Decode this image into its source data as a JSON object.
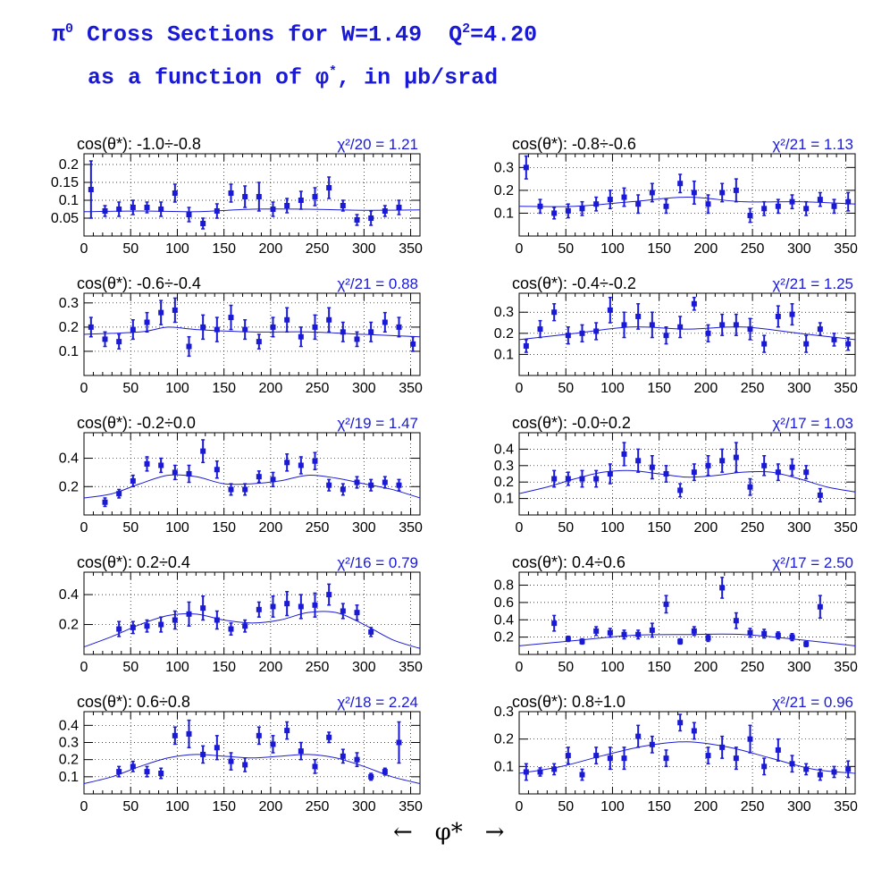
{
  "title": {
    "line1_prefix": "π",
    "line1_prefix_sup": "0",
    "line1_mid": " Cross Sections for W=1.49  Q",
    "line1_q_sup": "2",
    "line1_end": "=4.20",
    "line2_prefix": "as a function of φ",
    "line2_sup": "*",
    "line2_end": ", in μb/srad"
  },
  "footer": {
    "left_arrow": "←",
    "label": "φ*",
    "right_arrow": "→"
  },
  "colors": {
    "data": "#1a1ad6",
    "fit": "#1a1ad6",
    "grid": "#000000"
  },
  "chart_data": [
    {
      "type": "scatter",
      "label": "cos(θ*): -1.0÷-0.8",
      "chi2": "χ²/20 = 1.21",
      "xlim": [
        0,
        360
      ],
      "ylim": [
        0,
        0.23
      ],
      "yticks": [
        0.05,
        0.1,
        0.15,
        0.2
      ],
      "ytick_labels": [
        "0.05",
        "0.1",
        "0.15",
        "0.2"
      ],
      "x": [
        7.5,
        22.5,
        37.5,
        52.5,
        67.5,
        82.5,
        97.5,
        112.5,
        127.5,
        142.5,
        157.5,
        172.5,
        187.5,
        202.5,
        217.5,
        232.5,
        247.5,
        262.5,
        277.5,
        292.5,
        307.5,
        322.5,
        337.5
      ],
      "y": [
        0.13,
        0.07,
        0.075,
        0.08,
        0.08,
        0.075,
        0.12,
        0.06,
        0.035,
        0.07,
        0.12,
        0.11,
        0.11,
        0.075,
        0.085,
        0.1,
        0.11,
        0.135,
        0.085,
        0.045,
        0.05,
        0.07,
        0.08
      ],
      "err": [
        0.08,
        0.015,
        0.02,
        0.02,
        0.015,
        0.02,
        0.025,
        0.02,
        0.015,
        0.02,
        0.025,
        0.03,
        0.04,
        0.02,
        0.02,
        0.025,
        0.025,
        0.03,
        0.015,
        0.015,
        0.02,
        0.015,
        0.02
      ],
      "fit": [
        [
          0,
          0.068
        ],
        [
          60,
          0.07
        ],
        [
          120,
          0.068
        ],
        [
          180,
          0.075
        ],
        [
          240,
          0.075
        ],
        [
          300,
          0.072
        ],
        [
          360,
          0.073
        ]
      ]
    },
    {
      "type": "scatter",
      "label": "cos(θ*): -0.8÷-0.6",
      "chi2": "χ²/21 = 1.13",
      "xlim": [
        0,
        360
      ],
      "ylim": [
        0,
        0.36
      ],
      "yticks": [
        0.1,
        0.2,
        0.3
      ],
      "ytick_labels": [
        "0.1",
        "0.2",
        "0.3"
      ],
      "x": [
        7.5,
        22.5,
        37.5,
        52.5,
        67.5,
        82.5,
        97.5,
        112.5,
        127.5,
        142.5,
        157.5,
        172.5,
        187.5,
        202.5,
        217.5,
        232.5,
        247.5,
        262.5,
        277.5,
        292.5,
        307.5,
        322.5,
        337.5,
        352.5
      ],
      "y": [
        0.3,
        0.13,
        0.1,
        0.11,
        0.12,
        0.14,
        0.16,
        0.17,
        0.14,
        0.19,
        0.13,
        0.23,
        0.19,
        0.14,
        0.19,
        0.2,
        0.09,
        0.12,
        0.13,
        0.15,
        0.12,
        0.16,
        0.13,
        0.15
      ],
      "err": [
        0.05,
        0.03,
        0.025,
        0.03,
        0.03,
        0.03,
        0.04,
        0.04,
        0.04,
        0.04,
        0.03,
        0.04,
        0.05,
        0.04,
        0.04,
        0.05,
        0.03,
        0.03,
        0.03,
        0.03,
        0.03,
        0.03,
        0.03,
        0.04
      ],
      "fit": [
        [
          0,
          0.13
        ],
        [
          60,
          0.13
        ],
        [
          120,
          0.15
        ],
        [
          180,
          0.17
        ],
        [
          240,
          0.15
        ],
        [
          300,
          0.15
        ],
        [
          360,
          0.14
        ]
      ]
    },
    {
      "type": "scatter",
      "label": "cos(θ*): -0.6÷-0.4",
      "chi2": "χ²/21 = 0.88",
      "xlim": [
        0,
        360
      ],
      "ylim": [
        0,
        0.34
      ],
      "yticks": [
        0.1,
        0.2,
        0.3
      ],
      "ytick_labels": [
        "0.1",
        "0.2",
        "0.3"
      ],
      "x": [
        7.5,
        22.5,
        37.5,
        52.5,
        67.5,
        82.5,
        97.5,
        112.5,
        127.5,
        142.5,
        157.5,
        172.5,
        187.5,
        202.5,
        217.5,
        232.5,
        247.5,
        262.5,
        277.5,
        292.5,
        307.5,
        322.5,
        337.5,
        352.5
      ],
      "y": [
        0.2,
        0.15,
        0.14,
        0.19,
        0.22,
        0.26,
        0.27,
        0.12,
        0.2,
        0.19,
        0.24,
        0.19,
        0.14,
        0.2,
        0.23,
        0.16,
        0.2,
        0.23,
        0.18,
        0.15,
        0.18,
        0.22,
        0.2,
        0.13
      ],
      "err": [
        0.04,
        0.03,
        0.03,
        0.04,
        0.04,
        0.05,
        0.05,
        0.04,
        0.05,
        0.05,
        0.05,
        0.04,
        0.03,
        0.04,
        0.05,
        0.04,
        0.05,
        0.05,
        0.04,
        0.03,
        0.04,
        0.04,
        0.04,
        0.03
      ],
      "fit": [
        [
          0,
          0.17
        ],
        [
          60,
          0.18
        ],
        [
          90,
          0.2
        ],
        [
          120,
          0.19
        ],
        [
          180,
          0.18
        ],
        [
          240,
          0.18
        ],
        [
          300,
          0.17
        ],
        [
          360,
          0.16
        ]
      ]
    },
    {
      "type": "scatter",
      "label": "cos(θ*): -0.4÷-0.2",
      "chi2": "χ²/21 = 1.25",
      "xlim": [
        0,
        360
      ],
      "ylim": [
        0,
        0.39
      ],
      "yticks": [
        0.1,
        0.2,
        0.3
      ],
      "ytick_labels": [
        "0.1",
        "0.2",
        "0.3"
      ],
      "x": [
        7.5,
        22.5,
        37.5,
        52.5,
        67.5,
        82.5,
        97.5,
        112.5,
        127.5,
        142.5,
        157.5,
        172.5,
        187.5,
        202.5,
        217.5,
        232.5,
        247.5,
        262.5,
        277.5,
        292.5,
        307.5,
        322.5,
        337.5,
        352.5
      ],
      "y": [
        0.14,
        0.22,
        0.3,
        0.19,
        0.2,
        0.21,
        0.31,
        0.24,
        0.28,
        0.24,
        0.19,
        0.23,
        0.34,
        0.2,
        0.24,
        0.24,
        0.22,
        0.15,
        0.28,
        0.29,
        0.15,
        0.22,
        0.17,
        0.15
      ],
      "err": [
        0.03,
        0.04,
        0.04,
        0.04,
        0.04,
        0.04,
        0.06,
        0.06,
        0.06,
        0.06,
        0.04,
        0.05,
        0.03,
        0.04,
        0.05,
        0.05,
        0.05,
        0.04,
        0.05,
        0.05,
        0.04,
        0.03,
        0.03,
        0.03
      ],
      "fit": [
        [
          0,
          0.17
        ],
        [
          60,
          0.2
        ],
        [
          120,
          0.23
        ],
        [
          180,
          0.22
        ],
        [
          240,
          0.23
        ],
        [
          300,
          0.2
        ],
        [
          360,
          0.17
        ]
      ]
    },
    {
      "type": "scatter",
      "label": "cos(θ*): -0.2÷0.0",
      "chi2": "χ²/19 = 1.47",
      "xlim": [
        0,
        360
      ],
      "ylim": [
        0,
        0.58
      ],
      "yticks": [
        0.2,
        0.4
      ],
      "ytick_labels": [
        "0.2",
        "0.4"
      ],
      "x": [
        22.5,
        37.5,
        52.5,
        67.5,
        82.5,
        97.5,
        112.5,
        127.5,
        142.5,
        157.5,
        172.5,
        187.5,
        202.5,
        217.5,
        232.5,
        247.5,
        262.5,
        277.5,
        292.5,
        307.5,
        322.5,
        337.5
      ],
      "y": [
        0.09,
        0.15,
        0.24,
        0.36,
        0.35,
        0.3,
        0.29,
        0.45,
        0.32,
        0.18,
        0.18,
        0.27,
        0.25,
        0.37,
        0.35,
        0.38,
        0.21,
        0.18,
        0.23,
        0.21,
        0.23,
        0.21
      ],
      "err": [
        0.03,
        0.03,
        0.04,
        0.05,
        0.05,
        0.05,
        0.06,
        0.08,
        0.06,
        0.04,
        0.04,
        0.04,
        0.05,
        0.06,
        0.06,
        0.06,
        0.04,
        0.04,
        0.04,
        0.04,
        0.04,
        0.04
      ],
      "fit": [
        [
          0,
          0.12
        ],
        [
          30,
          0.15
        ],
        [
          60,
          0.22
        ],
        [
          90,
          0.28
        ],
        [
          120,
          0.27
        ],
        [
          150,
          0.22
        ],
        [
          180,
          0.22
        ],
        [
          210,
          0.24
        ],
        [
          240,
          0.28
        ],
        [
          270,
          0.26
        ],
        [
          300,
          0.22
        ],
        [
          330,
          0.18
        ],
        [
          360,
          0.12
        ]
      ]
    },
    {
      "type": "scatter",
      "label": "cos(θ*): -0.0÷0.2",
      "chi2": "χ²/17 = 1.03",
      "xlim": [
        0,
        360
      ],
      "ylim": [
        0,
        0.5
      ],
      "yticks": [
        0.1,
        0.2,
        0.3,
        0.4
      ],
      "ytick_labels": [
        "0.1",
        "0.2",
        "0.3",
        "0.4"
      ],
      "x": [
        37.5,
        52.5,
        67.5,
        82.5,
        97.5,
        112.5,
        127.5,
        142.5,
        157.5,
        172.5,
        187.5,
        202.5,
        217.5,
        232.5,
        247.5,
        262.5,
        277.5,
        292.5,
        307.5,
        322.5
      ],
      "y": [
        0.22,
        0.22,
        0.22,
        0.22,
        0.25,
        0.37,
        0.33,
        0.29,
        0.25,
        0.15,
        0.26,
        0.3,
        0.33,
        0.35,
        0.17,
        0.3,
        0.26,
        0.29,
        0.26,
        0.12
      ],
      "err": [
        0.05,
        0.04,
        0.05,
        0.05,
        0.06,
        0.07,
        0.07,
        0.07,
        0.05,
        0.04,
        0.05,
        0.06,
        0.07,
        0.09,
        0.05,
        0.06,
        0.05,
        0.05,
        0.04,
        0.04
      ],
      "fit": [
        [
          0,
          0.13
        ],
        [
          30,
          0.17
        ],
        [
          60,
          0.22
        ],
        [
          90,
          0.26
        ],
        [
          120,
          0.27
        ],
        [
          150,
          0.25
        ],
        [
          180,
          0.23
        ],
        [
          210,
          0.24
        ],
        [
          240,
          0.26
        ],
        [
          270,
          0.26
        ],
        [
          300,
          0.22
        ],
        [
          330,
          0.17
        ],
        [
          360,
          0.14
        ]
      ]
    },
    {
      "type": "scatter",
      "label": "cos(θ*): 0.2÷0.4",
      "chi2": "χ²/16 = 0.79",
      "xlim": [
        0,
        360
      ],
      "ylim": [
        0,
        0.55
      ],
      "yticks": [
        0.2,
        0.4
      ],
      "ytick_labels": [
        "0.2",
        "0.4"
      ],
      "x": [
        37.5,
        52.5,
        67.5,
        82.5,
        97.5,
        112.5,
        127.5,
        142.5,
        157.5,
        172.5,
        187.5,
        202.5,
        217.5,
        232.5,
        247.5,
        262.5,
        277.5,
        292.5,
        307.5
      ],
      "y": [
        0.17,
        0.18,
        0.19,
        0.2,
        0.23,
        0.27,
        0.31,
        0.23,
        0.17,
        0.19,
        0.3,
        0.32,
        0.34,
        0.32,
        0.33,
        0.4,
        0.29,
        0.28,
        0.15
      ],
      "err": [
        0.05,
        0.04,
        0.04,
        0.05,
        0.06,
        0.08,
        0.08,
        0.06,
        0.04,
        0.04,
        0.05,
        0.07,
        0.08,
        0.08,
        0.08,
        0.07,
        0.05,
        0.05,
        0.03
      ],
      "fit": [
        [
          0,
          0.05
        ],
        [
          30,
          0.12
        ],
        [
          60,
          0.2
        ],
        [
          90,
          0.26
        ],
        [
          120,
          0.27
        ],
        [
          150,
          0.23
        ],
        [
          180,
          0.21
        ],
        [
          210,
          0.23
        ],
        [
          240,
          0.28
        ],
        [
          270,
          0.28
        ],
        [
          300,
          0.2
        ],
        [
          330,
          0.1
        ],
        [
          360,
          0.04
        ]
      ]
    },
    {
      "type": "scatter",
      "label": "cos(θ*): 0.4÷0.6",
      "chi2": "χ²/17 = 2.50",
      "xlim": [
        0,
        360
      ],
      "ylim": [
        0,
        0.95
      ],
      "yticks": [
        0.2,
        0.4,
        0.6,
        0.8
      ],
      "ytick_labels": [
        "0.2",
        "0.4",
        "0.6",
        "0.8"
      ],
      "x": [
        37.5,
        52.5,
        67.5,
        82.5,
        97.5,
        112.5,
        127.5,
        142.5,
        157.5,
        172.5,
        187.5,
        202.5,
        217.5,
        232.5,
        247.5,
        262.5,
        277.5,
        292.5,
        307.5,
        322.5
      ],
      "y": [
        0.36,
        0.18,
        0.15,
        0.27,
        0.25,
        0.23,
        0.23,
        0.28,
        0.58,
        0.15,
        0.27,
        0.19,
        0.77,
        0.39,
        0.25,
        0.24,
        0.22,
        0.2,
        0.12,
        0.55
      ],
      "err": [
        0.09,
        0.03,
        0.03,
        0.05,
        0.05,
        0.05,
        0.05,
        0.08,
        0.1,
        0.03,
        0.05,
        0.04,
        0.12,
        0.09,
        0.05,
        0.05,
        0.04,
        0.04,
        0.03,
        0.13
      ],
      "fit": [
        [
          0,
          0.1
        ],
        [
          60,
          0.16
        ],
        [
          120,
          0.22
        ],
        [
          180,
          0.23
        ],
        [
          240,
          0.23
        ],
        [
          300,
          0.17
        ],
        [
          360,
          0.1
        ]
      ]
    },
    {
      "type": "scatter",
      "label": "cos(θ*): 0.6÷0.8",
      "chi2": "χ²/18 = 2.24",
      "xlim": [
        0,
        360
      ],
      "ylim": [
        0,
        0.48
      ],
      "yticks": [
        0.1,
        0.2,
        0.3,
        0.4
      ],
      "ytick_labels": [
        "0.1",
        "0.2",
        "0.3",
        "0.4"
      ],
      "x": [
        37.5,
        52.5,
        67.5,
        82.5,
        97.5,
        112.5,
        127.5,
        142.5,
        157.5,
        172.5,
        187.5,
        202.5,
        217.5,
        232.5,
        247.5,
        262.5,
        277.5,
        292.5,
        307.5,
        322.5,
        337.5
      ],
      "y": [
        0.13,
        0.16,
        0.13,
        0.12,
        0.34,
        0.35,
        0.23,
        0.27,
        0.19,
        0.17,
        0.34,
        0.29,
        0.37,
        0.25,
        0.16,
        0.33,
        0.22,
        0.2,
        0.1,
        0.13,
        0.3
      ],
      "err": [
        0.03,
        0.03,
        0.03,
        0.03,
        0.05,
        0.08,
        0.05,
        0.07,
        0.05,
        0.04,
        0.05,
        0.05,
        0.05,
        0.05,
        0.04,
        0.03,
        0.04,
        0.04,
        0.02,
        0.02,
        0.12
      ],
      "fit": [
        [
          0,
          0.06
        ],
        [
          30,
          0.1
        ],
        [
          60,
          0.16
        ],
        [
          90,
          0.21
        ],
        [
          120,
          0.23
        ],
        [
          150,
          0.22
        ],
        [
          180,
          0.21
        ],
        [
          210,
          0.22
        ],
        [
          240,
          0.23
        ],
        [
          270,
          0.21
        ],
        [
          300,
          0.16
        ],
        [
          330,
          0.1
        ],
        [
          360,
          0.06
        ]
      ]
    },
    {
      "type": "scatter",
      "label": "cos(θ*): 0.8÷1.0",
      "chi2": "χ²/21 = 0.96",
      "xlim": [
        0,
        360
      ],
      "ylim": [
        0,
        0.3
      ],
      "yticks": [
        0.1,
        0.2,
        0.3
      ],
      "ytick_labels": [
        "0.1",
        "0.2",
        "0.3"
      ],
      "x": [
        7.5,
        22.5,
        37.5,
        52.5,
        67.5,
        82.5,
        97.5,
        112.5,
        127.5,
        142.5,
        157.5,
        172.5,
        187.5,
        202.5,
        217.5,
        232.5,
        247.5,
        262.5,
        277.5,
        292.5,
        307.5,
        322.5,
        337.5,
        352.5
      ],
      "y": [
        0.08,
        0.08,
        0.09,
        0.14,
        0.07,
        0.14,
        0.13,
        0.13,
        0.21,
        0.18,
        0.13,
        0.26,
        0.23,
        0.14,
        0.17,
        0.13,
        0.2,
        0.1,
        0.16,
        0.11,
        0.09,
        0.07,
        0.08,
        0.09
      ],
      "err": [
        0.03,
        0.015,
        0.02,
        0.03,
        0.02,
        0.03,
        0.04,
        0.04,
        0.04,
        0.03,
        0.03,
        0.03,
        0.03,
        0.03,
        0.04,
        0.04,
        0.05,
        0.03,
        0.04,
        0.03,
        0.02,
        0.02,
        0.02,
        0.03
      ],
      "fit": [
        [
          0,
          0.075
        ],
        [
          45,
          0.1
        ],
        [
          90,
          0.14
        ],
        [
          135,
          0.175
        ],
        [
          180,
          0.19
        ],
        [
          225,
          0.17
        ],
        [
          270,
          0.13
        ],
        [
          315,
          0.09
        ],
        [
          360,
          0.075
        ]
      ]
    }
  ]
}
